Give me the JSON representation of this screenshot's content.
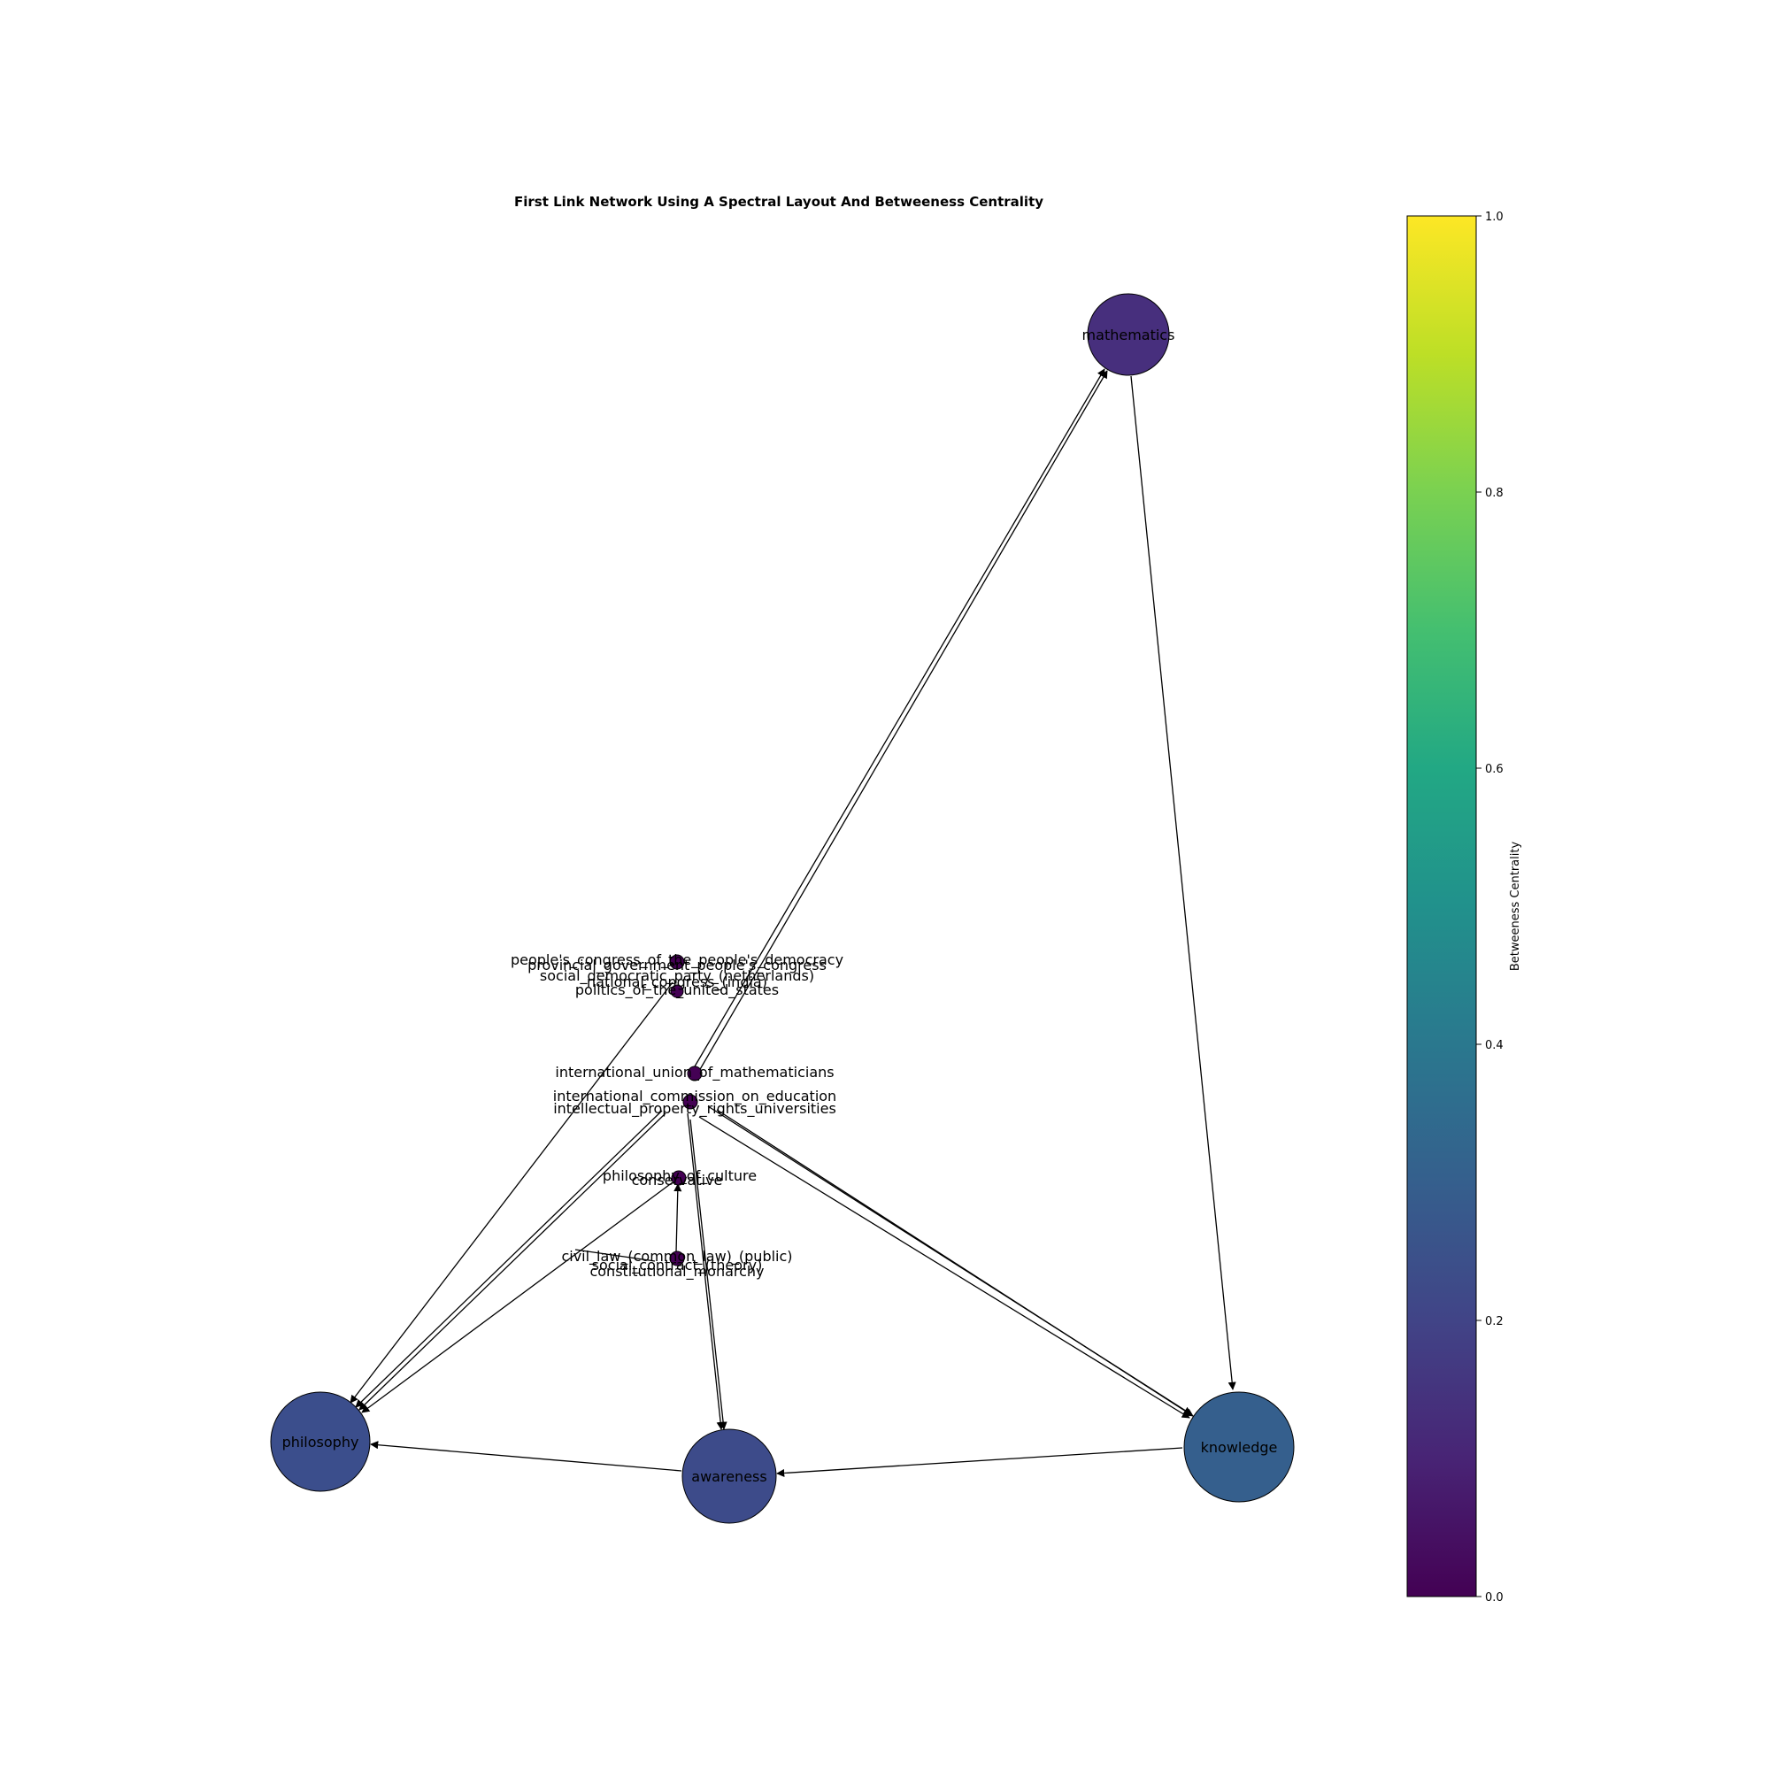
{
  "title": "First Link Network Using A Spectral Layout And Betweeness Centrality",
  "colorbar": {
    "label": "Betweeness Centrality",
    "ticks": [
      "0.0",
      "0.2",
      "0.4",
      "0.6",
      "0.8",
      "1.0"
    ],
    "range": [
      0,
      1
    ],
    "colormap": "viridis"
  },
  "nodes": {
    "mathematics": {
      "label": "mathematics",
      "centrality": 0.15
    },
    "philosophy": {
      "label": "philosophy",
      "centrality": 0.2
    },
    "awareness": {
      "label": "awareness",
      "centrality": 0.19
    },
    "knowledge": {
      "label": "knowledge",
      "centrality": 0.25
    },
    "philosophy_of_culture": {
      "label": "philosophy_of_culture",
      "centrality": 0.05
    },
    "conservative": {
      "label": "conservative",
      "centrality": 0.03
    }
  },
  "cluster_labels": {
    "top": [
      "people's_congress_of_the_people's_democracy",
      "provincial_government_people's_congress",
      "social_democratic_party_(netherlands)",
      "national_congress_(india)",
      "politics_of_the_united_states"
    ],
    "middle": [
      "international_union_of_mathematicians",
      "international_commission_on_education",
      "intellectual_property_rights_universities"
    ],
    "bottom": [
      "civil_law_(common_law)_(public)",
      "social_contract_(theory)",
      "constitutional_monarchy"
    ]
  }
}
